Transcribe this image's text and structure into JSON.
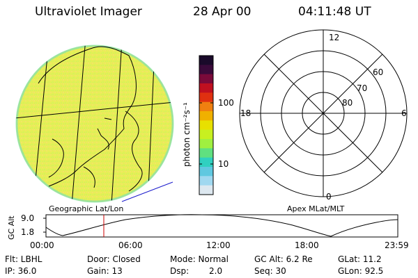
{
  "header": {
    "instrument": "Ultraviolet Imager",
    "date": "28 Apr 00",
    "time": "04:11:48 UT"
  },
  "colorbar": {
    "label": "photon cm⁻²s⁻¹",
    "ticks": [
      "100",
      "10"
    ],
    "colors": [
      "#1a0a2a",
      "#3a0a3a",
      "#7a0a3a",
      "#c01020",
      "#e03010",
      "#f08010",
      "#f0b000",
      "#e8e000",
      "#c8f020",
      "#a0f040",
      "#60e080",
      "#30d0c0",
      "#60c8e0",
      "#a0d8f0",
      "#dde8f0"
    ]
  },
  "image_panel": {
    "caption": "Geographic Lat/Lon",
    "fill_colors": [
      "#e8f050",
      "#f0e860",
      "#d8f060",
      "#f5e070"
    ]
  },
  "polar_plot": {
    "caption": "Apex MLat/MLT",
    "mlt_labels": [
      "12",
      "18",
      "6",
      "0"
    ],
    "lat_labels": [
      "60",
      "70",
      "80"
    ]
  },
  "orbit_plot": {
    "ylabel": "GC Alt",
    "yticks": [
      "9.0",
      "1.8"
    ],
    "xticks": [
      "00:00",
      "06:00",
      "12:00",
      "18:00",
      "23:59"
    ],
    "current_marker_color": "#cc0000"
  },
  "info": {
    "flt": "Flt: LBHL",
    "ip": "IP: 36.0",
    "door": "Door: Closed",
    "gain": "Gain: 13",
    "mode": "Mode: Normal",
    "dsp_label": "Dsp:",
    "dsp_value": "2.0",
    "gc_alt": "GC Alt: 6.2 Re",
    "seq": "Seq: 30",
    "glat": "GLat: 11.2",
    "glon": "GLon: 92.5"
  }
}
